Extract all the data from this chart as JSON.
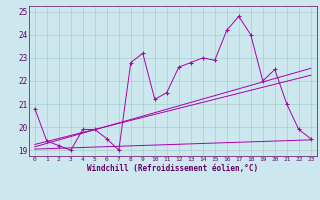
{
  "xlabel": "Windchill (Refroidissement éolien,°C)",
  "background_color": "#cce8ee",
  "grid_color": "#aacccc",
  "line_color": "#aa00aa",
  "xlim": [
    -0.5,
    23.5
  ],
  "ylim": [
    18.75,
    25.25
  ],
  "xticks": [
    0,
    1,
    2,
    3,
    4,
    5,
    6,
    7,
    8,
    9,
    10,
    11,
    12,
    13,
    14,
    15,
    16,
    17,
    18,
    19,
    20,
    21,
    22,
    23
  ],
  "yticks": [
    19,
    20,
    21,
    22,
    23,
    24,
    25
  ],
  "series1": [
    20.8,
    19.4,
    19.2,
    19.0,
    19.9,
    19.9,
    19.5,
    19.0,
    22.8,
    23.2,
    21.2,
    21.5,
    22.6,
    22.8,
    23.0,
    22.9,
    24.2,
    24.8,
    24.0,
    22.0,
    22.5,
    21.0,
    19.9,
    19.5
  ],
  "series2_x": [
    0,
    23
  ],
  "series2_y": [
    19.05,
    19.45
  ],
  "series3_x": [
    0,
    23
  ],
  "series3_y": [
    19.15,
    22.55
  ],
  "series4_x": [
    0,
    23
  ],
  "series4_y": [
    19.25,
    22.25
  ]
}
